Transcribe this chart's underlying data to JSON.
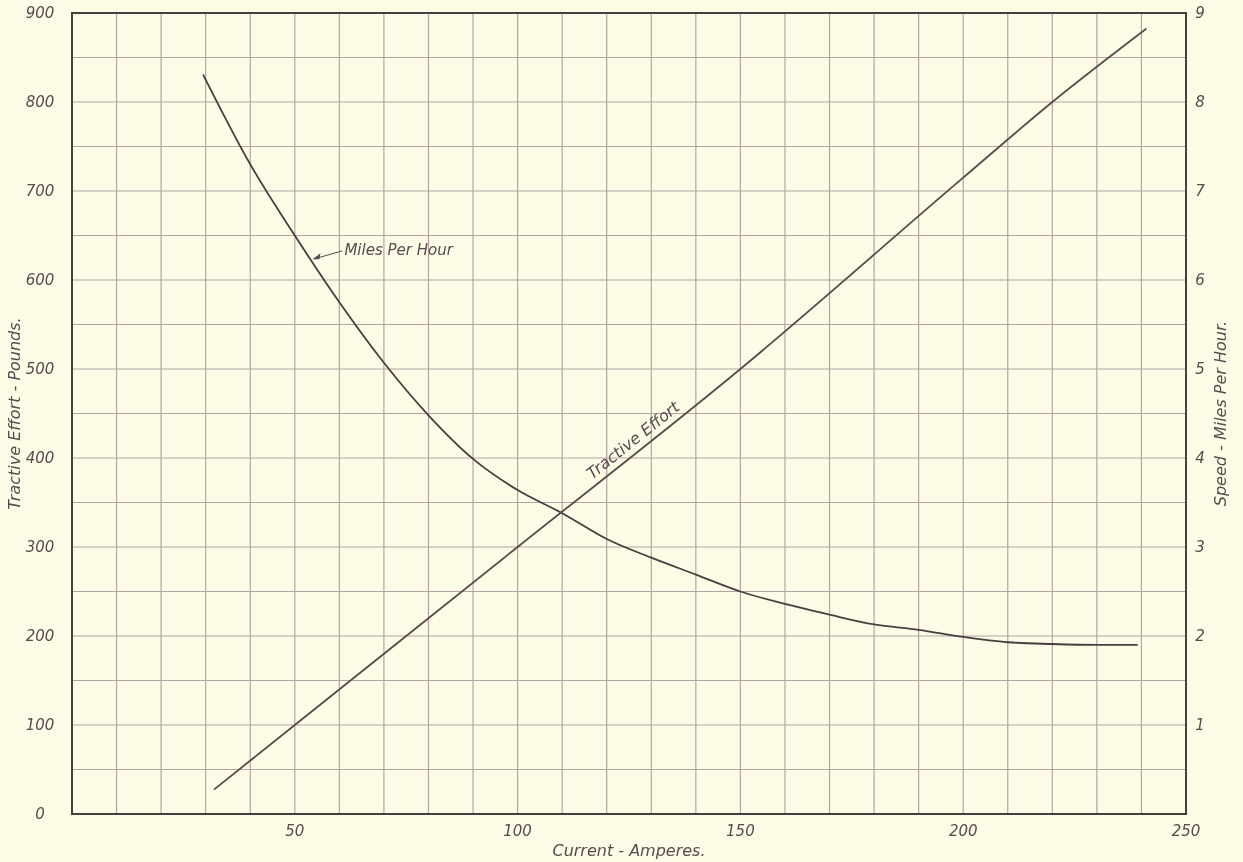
{
  "chart_data": {
    "type": "line",
    "xlabel": "Current - Amperes.",
    "ylabel": "Tractive Effort - Pounds.",
    "y2label": "Speed - Miles Per Hour.",
    "xlim": [
      0,
      250
    ],
    "xticks": [
      {
        "value": 10,
        "label": null
      },
      {
        "value": 20,
        "label": null
      },
      {
        "value": 30,
        "label": null
      },
      {
        "value": 40,
        "label": null
      },
      50,
      {
        "value": 60,
        "label": null
      },
      {
        "value": 70,
        "label": null
      },
      {
        "value": 80,
        "label": null
      },
      {
        "value": 90,
        "label": null
      },
      100,
      {
        "value": 110,
        "label": null
      },
      {
        "value": 120,
        "label": null
      },
      {
        "value": 130,
        "label": null
      },
      {
        "value": 140,
        "label": null
      },
      150,
      {
        "value": 160,
        "label": null
      },
      {
        "value": 170,
        "label": null
      },
      {
        "value": 180,
        "label": null
      },
      {
        "value": 190,
        "label": null
      },
      200,
      {
        "value": 210,
        "label": null
      },
      {
        "value": 220,
        "label": null
      },
      {
        "value": 230,
        "label": null
      },
      {
        "value": 240,
        "label": null
      },
      250
    ],
    "ylim": [
      0,
      900
    ],
    "yticks": [
      0,
      {
        "value": 50,
        "label": null
      },
      100,
      {
        "value": 150,
        "label": null
      },
      200,
      {
        "value": 250,
        "label": null
      },
      300,
      {
        "value": 350,
        "label": null
      },
      400,
      {
        "value": 450,
        "label": null
      },
      500,
      {
        "value": 550,
        "label": null
      },
      600,
      {
        "value": 650,
        "label": null
      },
      700,
      {
        "value": 750,
        "label": null
      },
      800,
      {
        "value": 850,
        "label": null
      },
      900
    ],
    "y2lim": [
      0,
      9
    ],
    "y2ticks": [
      1,
      2,
      3,
      4,
      5,
      6,
      7,
      8,
      9
    ],
    "grid": true,
    "marker": "none",
    "line_style": "solid",
    "series": [
      {
        "name": "Miles Per Hour",
        "color": "#4a3d40",
        "axis": "y2",
        "x": [
          29.5,
          40,
          50,
          60,
          70,
          80,
          90,
          100,
          110,
          120,
          130,
          140,
          150,
          160,
          170,
          180,
          190,
          200,
          210,
          220,
          230,
          239
        ],
        "values": [
          8.3,
          7.3,
          6.5,
          5.75,
          5.07,
          4.48,
          3.99,
          3.64,
          3.38,
          3.09,
          2.88,
          2.69,
          2.5,
          2.36,
          2.24,
          2.13,
          2.07,
          1.99,
          1.93,
          1.91,
          1.9,
          1.9
        ]
      },
      {
        "name": "Tractive Effort",
        "color": "#5a4a4d",
        "x": [
          32,
          50,
          100,
          150,
          200,
          220,
          241
        ],
        "values": [
          28,
          100,
          300,
          500,
          715,
          800,
          882
        ]
      }
    ]
  }
}
